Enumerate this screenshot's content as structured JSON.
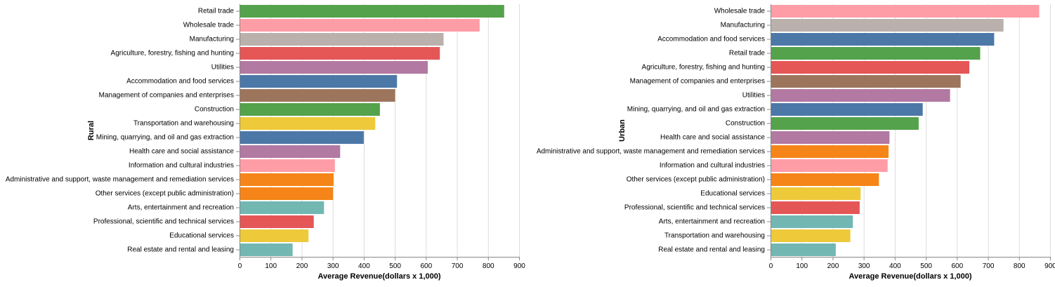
{
  "chart_data": [
    {
      "type": "bar",
      "orientation": "horizontal",
      "xlabel": "Average Revenue(dollars x 1,000)",
      "ylabel": "Rural",
      "xlim": [
        0,
        900
      ],
      "xticks": [
        "0",
        "100",
        "200",
        "300",
        "400",
        "500",
        "600",
        "700",
        "800",
        "900"
      ],
      "grid": true,
      "categories": [
        "Retail trade",
        "Wholesale trade",
        "Manufacturing",
        "Agriculture, forestry, fishing and hunting",
        "Utilities",
        "Accommodation and food services",
        "Management of companies and enterprises",
        "Construction",
        "Transportation and warehousing",
        "Mining, quarrying, and oil and gas extraction",
        "Health care and social assistance",
        "Information and cultural industries",
        "Administrative and support, waste management and remediation services",
        "Other services (except public administration)",
        "Arts, entertainment and recreation",
        "Professional, scientific and technical services",
        "Educational services",
        "Real estate and rental and leasing"
      ],
      "values": [
        852,
        773,
        657,
        645,
        606,
        507,
        501,
        452,
        437,
        400,
        324,
        307,
        303,
        301,
        272,
        239,
        222,
        171
      ]
    },
    {
      "type": "bar",
      "orientation": "horizontal",
      "xlabel": "Average Revenue(dollars x 1,000)",
      "ylabel": "Urban",
      "xlim": [
        0,
        900
      ],
      "xticks": [
        "0",
        "100",
        "200",
        "300",
        "400",
        "500",
        "600",
        "700",
        "800",
        "900"
      ],
      "grid": true,
      "categories": [
        "Wholesale trade",
        "Manufacturing",
        "Accommodation and food services",
        "Retail trade",
        "Agriculture, forestry, fishing and hunting",
        "Management of companies and enterprises",
        "Utilities",
        "Mining, quarrying, and oil and gas extraction",
        "Construction",
        "Health care and social assistance",
        "Administrative and support, waste management and remediation services",
        "Information and cultural industries",
        "Other services (except public administration)",
        "Educational services",
        "Professional, scientific and technical services",
        "Arts, entertainment and recreation",
        "Transportation and warehousing",
        "Real estate and rental and leasing"
      ],
      "values": [
        865,
        750,
        720,
        675,
        640,
        612,
        578,
        490,
        477,
        383,
        380,
        377,
        349,
        290,
        287,
        265,
        257,
        210
      ]
    }
  ],
  "colors": {
    "Retail trade": "#54a24b",
    "Wholesale trade": "#ff9da6",
    "Manufacturing": "#bab0ac",
    "Agriculture, forestry, fishing and hunting": "#e45756",
    "Utilities": "#b279a2",
    "Accommodation and food services": "#4c78a8",
    "Management of companies and enterprises": "#9d755d",
    "Construction": "#54a24b",
    "Transportation and warehousing": "#eeca3b",
    "Mining, quarrying, and oil and gas extraction": "#4c78a8",
    "Health care and social assistance": "#b279a2",
    "Information and cultural industries": "#ff9da6",
    "Administrative and support, waste management and remediation services": "#f58518",
    "Other services (except public administration)": "#f58518",
    "Arts, entertainment and recreation": "#72b7b2",
    "Professional, scientific and technical services": "#e45756",
    "Educational services": "#eeca3b",
    "Real estate and rental and leasing": "#72b7b2"
  }
}
